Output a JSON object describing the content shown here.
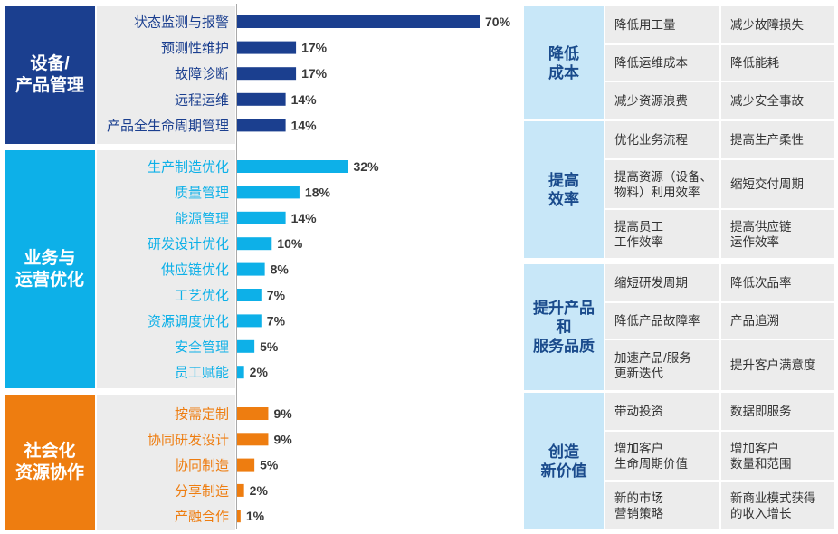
{
  "colors": {
    "equipment": "#1b3f8f",
    "business": "#0db0e8",
    "social": "#ee7d10",
    "right_header_bg": "#c8e7f8",
    "right_header_text": "#1a4b8c"
  },
  "left_categories": [
    {
      "title": "设备/\n产品管理"
    },
    {
      "title": "业务与\n运营优化"
    },
    {
      "title": "社会化\n资源协作"
    }
  ],
  "chart_data": {
    "type": "bar",
    "orientation": "horizontal",
    "unit": "%",
    "xlim": [
      0,
      70
    ],
    "groups": [
      {
        "name": "设备/产品管理",
        "color": "#1b3f8f",
        "categories": [
          "状态监测与报警",
          "预测性维护",
          "故障诊断",
          "远程运维",
          "产品全生命周期管理"
        ],
        "values": [
          70,
          17,
          17,
          14,
          14
        ],
        "labels": [
          "70%",
          "17%",
          "17%",
          "14%",
          "14%"
        ]
      },
      {
        "name": "业务与运营优化",
        "color": "#0db0e8",
        "categories": [
          "生产制造优化",
          "质量管理",
          "能源管理",
          "研发设计优化",
          "供应链优化",
          "工艺优化",
          "资源调度优化",
          "安全管理",
          "员工赋能"
        ],
        "values": [
          32,
          18,
          14,
          10,
          8,
          7,
          7,
          5,
          2
        ],
        "labels": [
          "32%",
          "18%",
          "14%",
          "10%",
          "8%",
          "7%",
          "7%",
          "5%",
          "2%"
        ]
      },
      {
        "name": "社会化资源协作",
        "color": "#ee7d10",
        "categories": [
          "按需定制",
          "协同研发设计",
          "协同制造",
          "分享制造",
          "产融合作"
        ],
        "values": [
          9,
          9,
          5,
          2,
          1
        ],
        "labels": [
          "9%",
          "9%",
          "5%",
          "2%",
          "1%"
        ]
      }
    ]
  },
  "right_groups": [
    {
      "title": "降低\n成本",
      "cells": [
        "降低用工量",
        "减少故障损失",
        "降低运维成本",
        "降低能耗",
        "减少资源浪费",
        "减少安全事故"
      ]
    },
    {
      "title": "提高\n效率",
      "cells": [
        "优化业务流程",
        "提高生产柔性",
        "提高资源（设备、\n物料）利用效率",
        "缩短交付周期",
        "提高员工\n工作效率",
        "提高供应链\n运作效率"
      ]
    },
    {
      "title": "提升产品\n和\n服务品质",
      "cells": [
        "缩短研发周期",
        "降低次品率",
        "降低产品故障率",
        "产品追溯",
        "加速产品/服务\n更新迭代",
        "提升客户满意度"
      ]
    },
    {
      "title": "创造\n新价值",
      "cells": [
        "带动投资",
        "数据即服务",
        "增加客户\n生命周期价值",
        "增加客户\n数量和范围",
        "新的市场\n营销策略",
        "新商业模式获得\n的收入增长"
      ]
    }
  ]
}
